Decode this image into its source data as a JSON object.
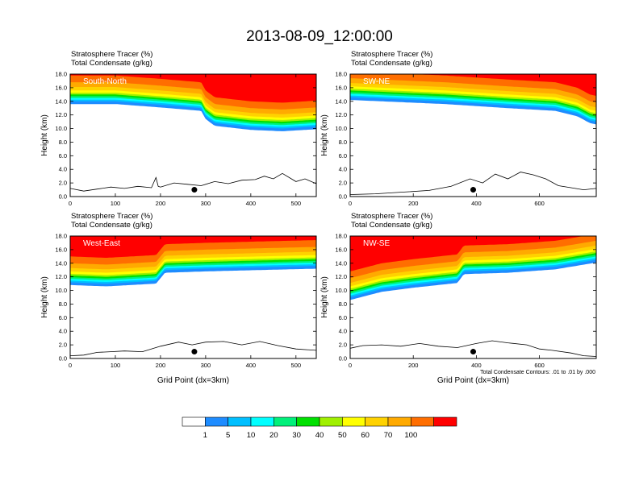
{
  "title": "2013-08-09_12:00:00",
  "colors": {
    "levels": [
      "#ffffff",
      "#1e8cff",
      "#00bfff",
      "#00ffff",
      "#00f07a",
      "#00e000",
      "#a0f000",
      "#ffff00",
      "#ffd200",
      "#ffaa00",
      "#ff6e00",
      "#ff0000"
    ],
    "terrain": "#000000",
    "marker": "#000000"
  },
  "colorbar": {
    "labels": [
      "1",
      "5",
      "10",
      "20",
      "30",
      "40",
      "50",
      "60",
      "70",
      "100"
    ]
  },
  "footnote": "Total Condensate Contours: .01 to .01 by .000",
  "chart_data": [
    {
      "type": "area",
      "panel_label": "South-North",
      "subtitle1": "Stratosphere Tracer   (%)",
      "subtitle2": "Total Condensate   (g/kg)",
      "ylabel": "Height (km)",
      "xlabel": "",
      "xlim": [
        0,
        545
      ],
      "ylim": [
        0,
        18
      ],
      "xticks": [
        "0",
        "100",
        "200",
        "300",
        "400",
        "500"
      ],
      "yticks": [
        "0.0",
        "2.0",
        "4.0",
        "6.0",
        "8.0",
        "10.0",
        "12.0",
        "14.0",
        "16.0",
        "18.0"
      ],
      "tropopause": {
        "x": [
          0,
          100,
          200,
          290,
          300,
          320,
          400,
          470,
          545
        ],
        "z": [
          14.0,
          14.0,
          13.5,
          13.0,
          11.8,
          10.8,
          10.2,
          10.0,
          10.3
        ]
      },
      "terrain": {
        "x": [
          0,
          30,
          60,
          90,
          120,
          150,
          180,
          190,
          195,
          200,
          230,
          260,
          290,
          320,
          350,
          380,
          410,
          430,
          450,
          470,
          500,
          520,
          545
        ],
        "z": [
          1.2,
          0.8,
          1.1,
          1.4,
          1.2,
          1.5,
          1.3,
          2.8,
          1.5,
          1.4,
          2.0,
          1.8,
          1.6,
          2.2,
          1.9,
          2.4,
          2.5,
          3.0,
          2.6,
          3.4,
          2.2,
          2.6,
          1.9
        ]
      },
      "marker": {
        "x": 275,
        "z": 1.0
      }
    },
    {
      "type": "area",
      "panel_label": "SW-NE",
      "subtitle1": "Stratosphere Tracer   (%)",
      "subtitle2": "Total Condensate   (g/kg)",
      "ylabel": "Height (km)",
      "xlabel": "",
      "xlim": [
        0,
        780
      ],
      "ylim": [
        0,
        18
      ],
      "xticks": [
        "0",
        "200",
        "400",
        "600"
      ],
      "yticks": [
        "0.0",
        "2.0",
        "4.0",
        "6.0",
        "8.0",
        "10.0",
        "12.0",
        "14.0",
        "16.0",
        "18.0"
      ],
      "tropopause": {
        "x": [
          0,
          100,
          300,
          500,
          650,
          720,
          760,
          780
        ],
        "z": [
          14.6,
          14.4,
          14.0,
          13.4,
          13.0,
          12.2,
          11.2,
          11.0
        ]
      },
      "terrain": {
        "x": [
          0,
          80,
          150,
          250,
          320,
          380,
          420,
          460,
          500,
          540,
          580,
          620,
          660,
          700,
          740,
          780
        ],
        "z": [
          0.3,
          0.4,
          0.6,
          0.9,
          1.5,
          2.6,
          2.0,
          3.3,
          2.6,
          3.6,
          3.2,
          2.6,
          1.6,
          1.3,
          1.0,
          1.2
        ]
      },
      "marker": {
        "x": 390,
        "z": 1.0
      }
    },
    {
      "type": "area",
      "panel_label": "West-East",
      "subtitle1": "Stratosphere Tracer   (%)",
      "subtitle2": "Total Condensate   (g/kg)",
      "ylabel": "Height (km)",
      "xlabel": "Grid Point (dx=3km)",
      "xlim": [
        0,
        545
      ],
      "ylim": [
        0,
        18
      ],
      "xticks": [
        "0",
        "100",
        "200",
        "300",
        "400",
        "500"
      ],
      "yticks": [
        "0.0",
        "2.0",
        "4.0",
        "6.0",
        "8.0",
        "10.0",
        "12.0",
        "14.0",
        "16.0",
        "18.0"
      ],
      "tropopause": {
        "x": [
          0,
          80,
          190,
          210,
          300,
          420,
          545
        ],
        "z": [
          11.2,
          11.0,
          11.4,
          13.0,
          13.2,
          13.4,
          13.6
        ]
      },
      "terrain": {
        "x": [
          0,
          30,
          60,
          90,
          120,
          160,
          200,
          240,
          270,
          300,
          340,
          380,
          420,
          460,
          500,
          545
        ],
        "z": [
          0.4,
          0.5,
          0.9,
          1.0,
          1.1,
          1.0,
          1.8,
          2.4,
          2.0,
          2.4,
          2.5,
          2.0,
          2.5,
          1.9,
          1.4,
          1.2
        ]
      },
      "marker": {
        "x": 275,
        "z": 1.0
      }
    },
    {
      "type": "area",
      "panel_label": "NW-SE",
      "subtitle1": "Stratosphere Tracer   (%)",
      "subtitle2": "Total Condensate   (g/kg)",
      "ylabel": "Height (km)",
      "xlabel": "Grid Point (dx=3km)",
      "xlim": [
        0,
        780
      ],
      "ylim": [
        0,
        18
      ],
      "xticks": [
        "0",
        "200",
        "400",
        "600"
      ],
      "yticks": [
        "0.0",
        "2.0",
        "4.0",
        "6.0",
        "8.0",
        "10.0",
        "12.0",
        "14.0",
        "16.0",
        "18.0"
      ],
      "tropopause": {
        "x": [
          0,
          100,
          200,
          340,
          360,
          500,
          650,
          780
        ],
        "z": [
          9.0,
          10.2,
          10.8,
          11.5,
          12.8,
          13.0,
          13.5,
          14.5
        ]
      },
      "terrain": {
        "x": [
          0,
          40,
          100,
          160,
          220,
          280,
          340,
          400,
          450,
          500,
          560,
          600,
          640,
          700,
          740,
          780
        ],
        "z": [
          1.5,
          1.9,
          2.0,
          1.8,
          2.2,
          1.8,
          1.6,
          2.2,
          2.6,
          2.3,
          2.0,
          1.4,
          1.2,
          0.8,
          0.4,
          0.3
        ]
      },
      "marker": {
        "x": 390,
        "z": 1.0
      }
    }
  ]
}
